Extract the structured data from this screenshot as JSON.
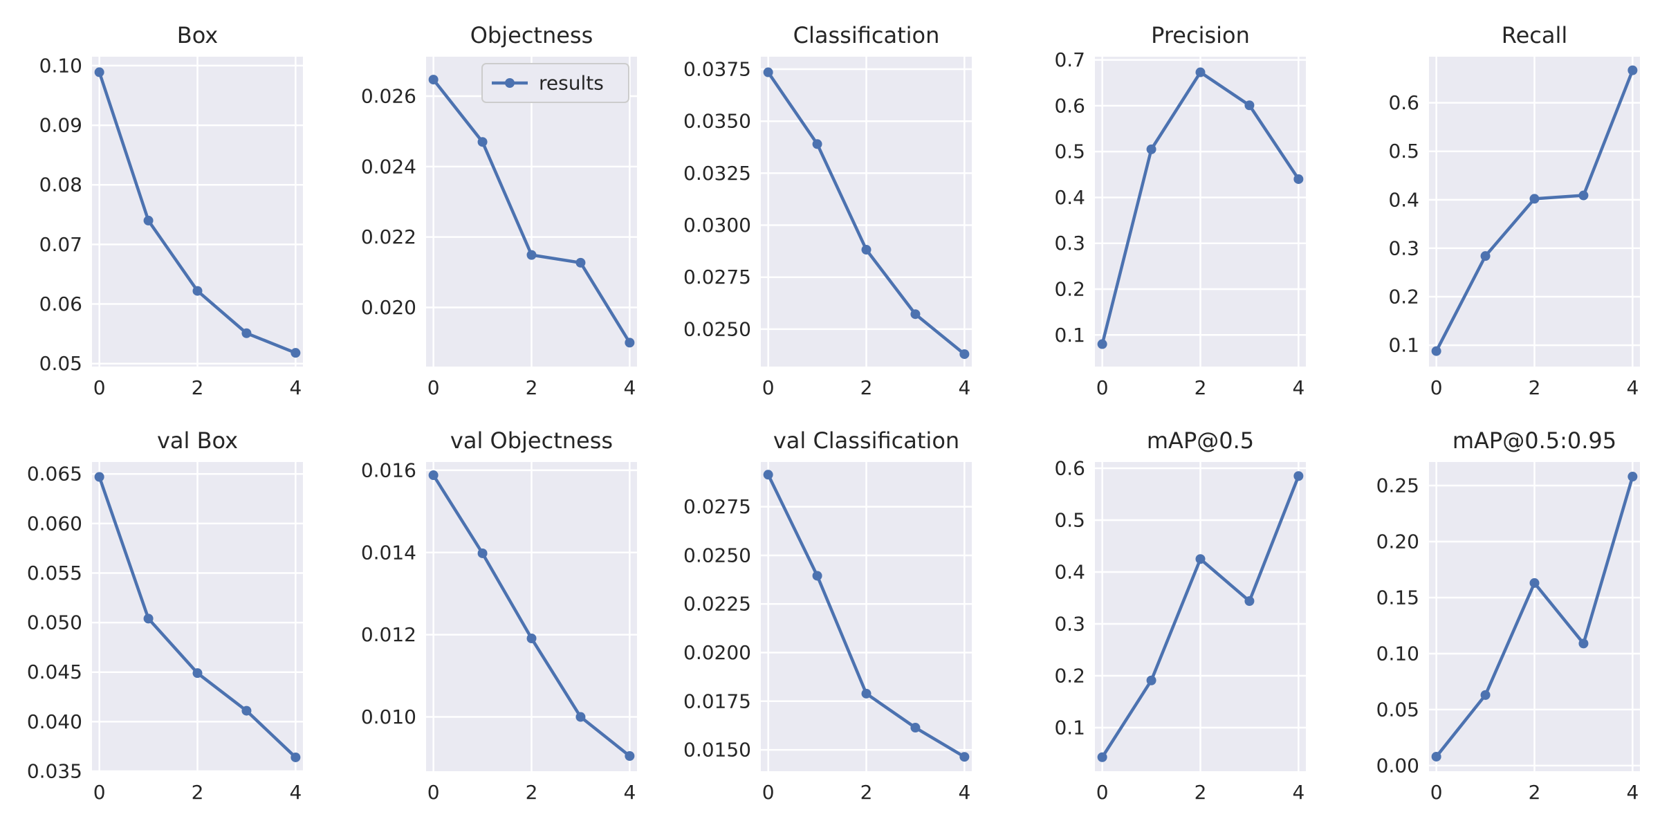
{
  "colors": {
    "line": "#4c72b0",
    "axes_bg": "#eaeaf2",
    "grid": "#ffffff",
    "text": "#262626"
  },
  "legend": {
    "label": "results",
    "subplot": 1,
    "placement": "upper right"
  },
  "chart_data": [
    {
      "type": "line",
      "title": "Box",
      "x": [
        0,
        1,
        2,
        3,
        4
      ],
      "values": [
        0.0989,
        0.074,
        0.0622,
        0.0551,
        0.0518
      ],
      "ylim": [
        0.0495,
        0.1015
      ],
      "yticks": [
        0.05,
        0.06,
        0.07,
        0.08,
        0.09,
        0.1
      ],
      "ytick_labels": [
        "0.05",
        "0.06",
        "0.07",
        "0.08",
        "0.09",
        "0.10"
      ],
      "xticks": [
        0,
        2,
        4
      ],
      "xtick_labels": [
        "0",
        "2",
        "4"
      ],
      "grid": true
    },
    {
      "type": "line",
      "title": "Objectness",
      "x": [
        0,
        1,
        2,
        3,
        4
      ],
      "values": [
        0.02647,
        0.0247,
        0.02149,
        0.02127,
        0.019
      ],
      "ylim": [
        0.01832,
        0.02712
      ],
      "yticks": [
        0.02,
        0.022,
        0.024,
        0.026
      ],
      "ytick_labels": [
        "0.020",
        "0.022",
        "0.024",
        "0.026"
      ],
      "xticks": [
        0,
        2,
        4
      ],
      "xtick_labels": [
        "0",
        "2",
        "4"
      ],
      "grid": true
    },
    {
      "type": "line",
      "title": "Classification",
      "x": [
        0,
        1,
        2,
        3,
        4
      ],
      "values": [
        0.03735,
        0.0339,
        0.02882,
        0.02572,
        0.0238
      ],
      "ylim": [
        0.0232,
        0.0381
      ],
      "yticks": [
        0.025,
        0.0275,
        0.03,
        0.0325,
        0.035,
        0.0375
      ],
      "ytick_labels": [
        "0.0250",
        "0.0275",
        "0.0300",
        "0.0325",
        "0.0350",
        "0.0375"
      ],
      "xticks": [
        0,
        2,
        4
      ],
      "xtick_labels": [
        "0",
        "2",
        "4"
      ],
      "grid": true
    },
    {
      "type": "line",
      "title": "Precision",
      "x": [
        0,
        1,
        2,
        3,
        4
      ],
      "values": [
        0.08,
        0.505,
        0.673,
        0.601,
        0.44
      ],
      "ylim": [
        0.031,
        0.707
      ],
      "yticks": [
        0.1,
        0.2,
        0.3,
        0.4,
        0.5,
        0.6,
        0.7
      ],
      "ytick_labels": [
        "0.1",
        "0.2",
        "0.3",
        "0.4",
        "0.5",
        "0.6",
        "0.7"
      ],
      "xticks": [
        0,
        2,
        4
      ],
      "xtick_labels": [
        "0",
        "2",
        "4"
      ],
      "grid": true
    },
    {
      "type": "line",
      "title": "Recall",
      "x": [
        0,
        1,
        2,
        3,
        4
      ],
      "values": [
        0.088,
        0.284,
        0.402,
        0.409,
        0.667
      ],
      "ylim": [
        0.056,
        0.695
      ],
      "yticks": [
        0.1,
        0.2,
        0.3,
        0.4,
        0.5,
        0.6
      ],
      "ytick_labels": [
        "0.1",
        "0.2",
        "0.3",
        "0.4",
        "0.5",
        "0.6"
      ],
      "xticks": [
        0,
        2,
        4
      ],
      "xtick_labels": [
        "0",
        "2",
        "4"
      ],
      "grid": true
    },
    {
      "type": "line",
      "title": "val Box",
      "x": [
        0,
        1,
        2,
        3,
        4
      ],
      "values": [
        0.0647,
        0.0504,
        0.0449,
        0.0411,
        0.0364
      ],
      "ylim": [
        0.035,
        0.0662
      ],
      "yticks": [
        0.035,
        0.04,
        0.045,
        0.05,
        0.055,
        0.06,
        0.065
      ],
      "ytick_labels": [
        "0.035",
        "0.040",
        "0.045",
        "0.050",
        "0.055",
        "0.060",
        "0.065"
      ],
      "xticks": [
        0,
        2,
        4
      ],
      "xtick_labels": [
        "0",
        "2",
        "4"
      ],
      "grid": true
    },
    {
      "type": "line",
      "title": "val Objectness",
      "x": [
        0,
        1,
        2,
        3,
        4
      ],
      "values": [
        0.01588,
        0.01398,
        0.01191,
        0.01,
        0.00905
      ],
      "ylim": [
        0.00868,
        0.0162
      ],
      "yticks": [
        0.01,
        0.012,
        0.014,
        0.016
      ],
      "ytick_labels": [
        "0.010",
        "0.012",
        "0.014",
        "0.016"
      ],
      "xticks": [
        0,
        2,
        4
      ],
      "xtick_labels": [
        "0",
        "2",
        "4"
      ],
      "grid": true
    },
    {
      "type": "line",
      "title": "val Classification",
      "x": [
        0,
        1,
        2,
        3,
        4
      ],
      "values": [
        0.02915,
        0.02395,
        0.01789,
        0.01614,
        0.01464
      ],
      "ylim": [
        0.0139,
        0.0298
      ],
      "yticks": [
        0.015,
        0.0175,
        0.02,
        0.0225,
        0.025,
        0.0275
      ],
      "ytick_labels": [
        "0.0150",
        "0.0175",
        "0.0200",
        "0.0225",
        "0.0250",
        "0.0275"
      ],
      "xticks": [
        0,
        2,
        4
      ],
      "xtick_labels": [
        "0",
        "2",
        "4"
      ],
      "grid": true
    },
    {
      "type": "line",
      "title": "mAP@0.5",
      "x": [
        0,
        1,
        2,
        3,
        4
      ],
      "values": [
        0.043,
        0.191,
        0.425,
        0.344,
        0.585
      ],
      "ylim": [
        0.016,
        0.612
      ],
      "yticks": [
        0.1,
        0.2,
        0.3,
        0.4,
        0.5,
        0.6
      ],
      "ytick_labels": [
        "0.1",
        "0.2",
        "0.3",
        "0.4",
        "0.5",
        "0.6"
      ],
      "xticks": [
        0,
        2,
        4
      ],
      "xtick_labels": [
        "0",
        "2",
        "4"
      ],
      "grid": true
    },
    {
      "type": "line",
      "title": "mAP@0.5:0.95",
      "x": [
        0,
        1,
        2,
        3,
        4
      ],
      "values": [
        0.008,
        0.063,
        0.163,
        0.109,
        0.258
      ],
      "ylim": [
        -0.005,
        0.271
      ],
      "yticks": [
        0.0,
        0.05,
        0.1,
        0.15,
        0.2,
        0.25
      ],
      "ytick_labels": [
        "0.00",
        "0.05",
        "0.10",
        "0.15",
        "0.20",
        "0.25"
      ],
      "xticks": [
        0,
        2,
        4
      ],
      "xtick_labels": [
        "0",
        "2",
        "4"
      ],
      "grid": true
    }
  ]
}
